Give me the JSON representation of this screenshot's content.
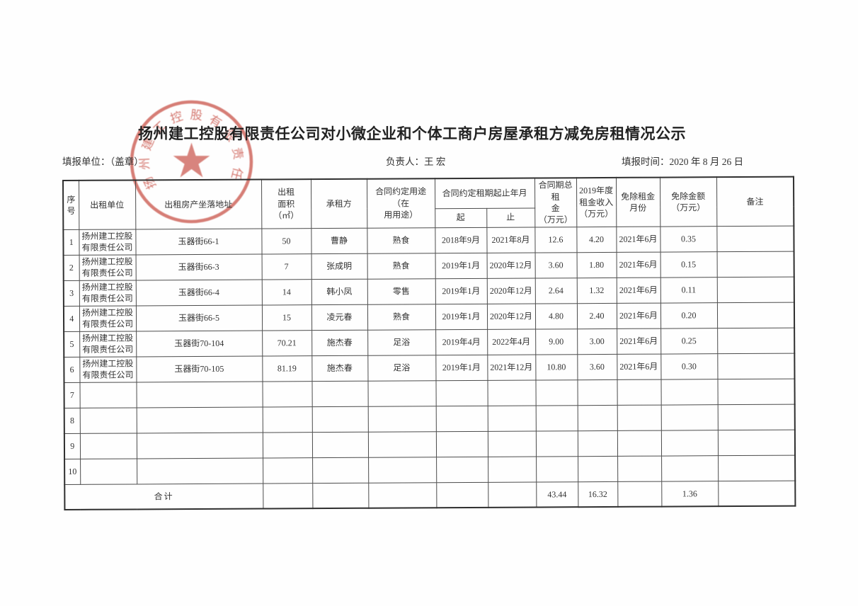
{
  "page": {
    "title": "扬州建工控股有限责任公司对小微企业和个体工商户房屋承租方减免房租情况公示",
    "filing_unit_label": "填报单位：（盖章）",
    "responsible_label": "负责人：王  宏",
    "filing_time_label": "填报时间：2020 年 8 月 26 日"
  },
  "stamp": {
    "text": "扬州建工控股有限责任公司",
    "color": "#c5453a"
  },
  "table": {
    "headers": {
      "seq": "序\n号",
      "lessor": "出租单位",
      "address": "出租房产坐落地址",
      "area": "出租\n面积\n（㎡）",
      "lessee": "承租方",
      "usage": "合同约定用途（在\n用用途）",
      "term": "合同约定租期起止年月",
      "start": "起",
      "end": "止",
      "total": "合同期总租\n金\n（万元）",
      "income": "2019年度\n租金收入\n（万元）",
      "month": "免除租金\n月份",
      "amount": "免除金额\n（万元）",
      "remark": "备注"
    },
    "rows": [
      {
        "seq": "1",
        "lessor": "扬州建工控股有限责任公司",
        "address": "玉器街66-1",
        "area": "50",
        "lessee": "曹静",
        "usage": "熟食",
        "start": "2018年9月",
        "end": "2021年8月",
        "total": "12.6",
        "income": "4.20",
        "month": "2021年6月",
        "amount": "0.35",
        "remark": ""
      },
      {
        "seq": "2",
        "lessor": "扬州建工控股有限责任公司",
        "address": "玉器街66-3",
        "area": "7",
        "lessee": "张成明",
        "usage": "熟食",
        "start": "2019年1月",
        "end": "2020年12月",
        "total": "3.60",
        "income": "1.80",
        "month": "2021年6月",
        "amount": "0.15",
        "remark": ""
      },
      {
        "seq": "3",
        "lessor": "扬州建工控股有限责任公司",
        "address": "玉器街66-4",
        "area": "14",
        "lessee": "韩小凤",
        "usage": "零售",
        "start": "2019年1月",
        "end": "2020年12月",
        "total": "2.64",
        "income": "1.32",
        "month": "2021年6月",
        "amount": "0.11",
        "remark": ""
      },
      {
        "seq": "4",
        "lessor": "扬州建工控股有限责任公司",
        "address": "玉器街66-5",
        "area": "15",
        "lessee": "凌元春",
        "usage": "熟食",
        "start": "2019年1月",
        "end": "2020年12月",
        "total": "4.80",
        "income": "2.40",
        "month": "2021年6月",
        "amount": "0.20",
        "remark": ""
      },
      {
        "seq": "5",
        "lessor": "扬州建工控股有限责任公司",
        "address": "玉器街70-104",
        "area": "70.21",
        "lessee": "施杰春",
        "usage": "足浴",
        "start": "2019年4月",
        "end": "2022年4月",
        "total": "9.00",
        "income": "3.00",
        "month": "2021年6月",
        "amount": "0.25",
        "remark": ""
      },
      {
        "seq": "6",
        "lessor": "扬州建工控股有限责任公司",
        "address": "玉器街70-105",
        "area": "81.19",
        "lessee": "施杰春",
        "usage": "足浴",
        "start": "2019年1月",
        "end": "2021年12月",
        "total": "10.80",
        "income": "3.60",
        "month": "2021年6月",
        "amount": "0.30",
        "remark": ""
      },
      {
        "seq": "7",
        "lessor": "",
        "address": "",
        "area": "",
        "lessee": "",
        "usage": "",
        "start": "",
        "end": "",
        "total": "",
        "income": "",
        "month": "",
        "amount": "",
        "remark": ""
      },
      {
        "seq": "8",
        "lessor": "",
        "address": "",
        "area": "",
        "lessee": "",
        "usage": "",
        "start": "",
        "end": "",
        "total": "",
        "income": "",
        "month": "",
        "amount": "",
        "remark": ""
      },
      {
        "seq": "9",
        "lessor": "",
        "address": "",
        "area": "",
        "lessee": "",
        "usage": "",
        "start": "",
        "end": "",
        "total": "",
        "income": "",
        "month": "",
        "amount": "",
        "remark": ""
      },
      {
        "seq": "10",
        "lessor": "",
        "address": "",
        "area": "",
        "lessee": "",
        "usage": "",
        "start": "",
        "end": "",
        "total": "",
        "income": "",
        "month": "",
        "amount": "",
        "remark": ""
      }
    ],
    "total_row": {
      "label": "合计",
      "area": "",
      "lessee": "",
      "usage": "",
      "start": "",
      "end": "",
      "total": "43.44",
      "income": "16.32",
      "month": "",
      "amount": "1.36",
      "remark": ""
    }
  }
}
